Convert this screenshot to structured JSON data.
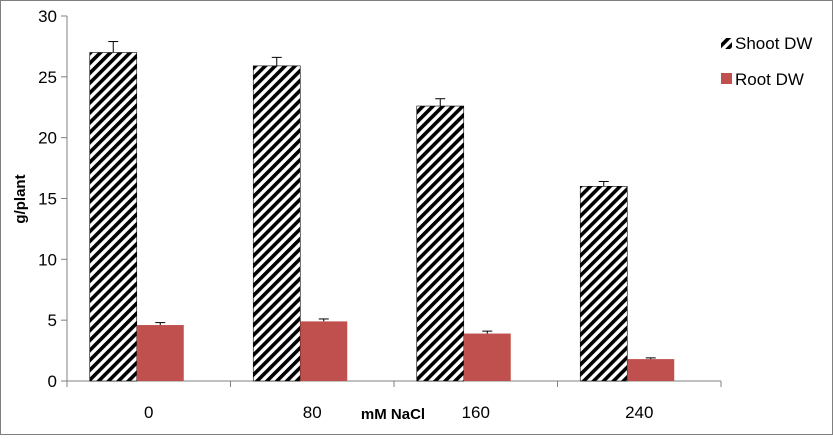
{
  "chart_data": {
    "type": "bar",
    "title": "",
    "xlabel": "mM NaCl",
    "ylabel": "g/plant",
    "categories": [
      "0",
      "80",
      "160",
      "240"
    ],
    "ylim": [
      0,
      30
    ],
    "yticks": [
      0,
      5,
      10,
      15,
      20,
      25,
      30
    ],
    "grid": false,
    "legend_position": "top-right",
    "series": [
      {
        "name": "Shoot DW",
        "values": [
          27.0,
          25.9,
          22.6,
          16.0
        ],
        "errors": [
          0.9,
          0.7,
          0.6,
          0.4
        ],
        "fill": "hatch",
        "color": "#000000"
      },
      {
        "name": "Root DW",
        "values": [
          4.6,
          4.9,
          3.9,
          1.8
        ],
        "errors": [
          0.2,
          0.2,
          0.2,
          0.1
        ],
        "fill": "solid",
        "color": "#c0504d"
      }
    ]
  }
}
